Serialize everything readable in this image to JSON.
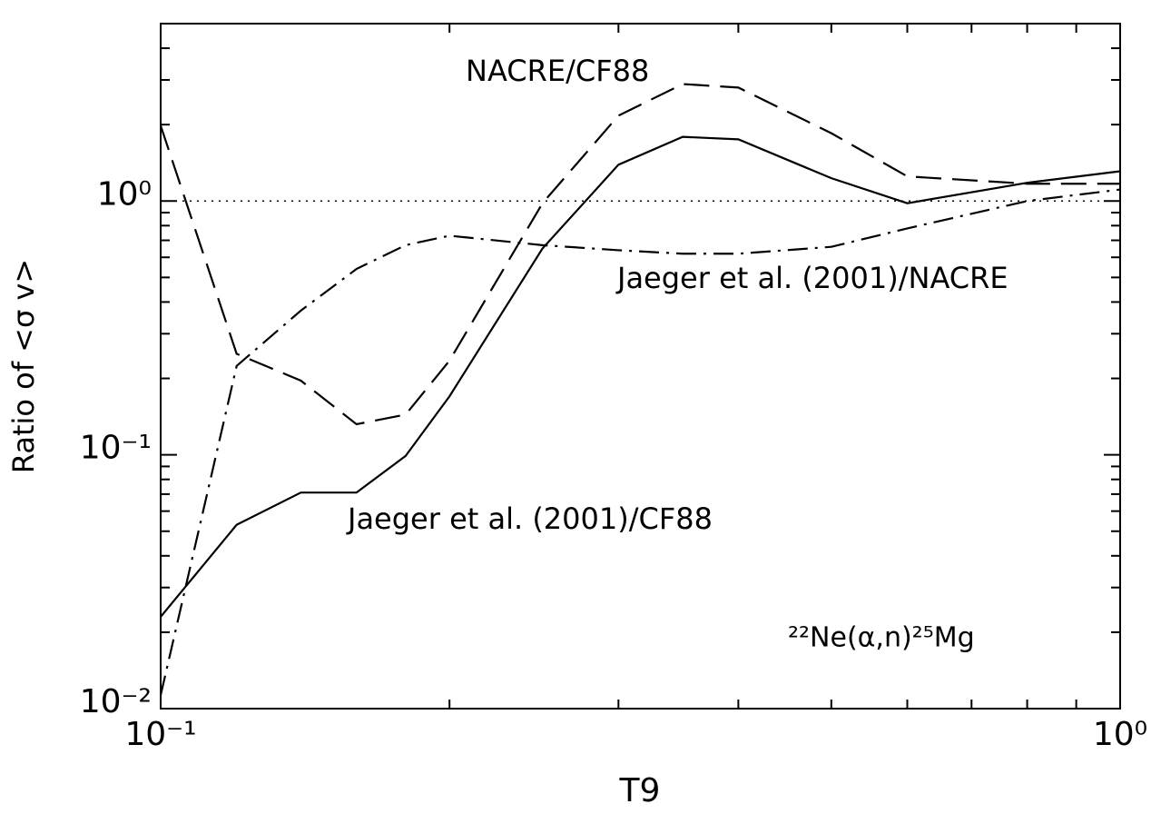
{
  "chart_data": {
    "type": "line",
    "x_label": "T9",
    "y_label": "Ratio of <σ v>",
    "x": [
      0.1,
      0.12,
      0.14,
      0.16,
      0.18,
      0.2,
      0.25,
      0.3,
      0.35,
      0.4,
      0.5,
      0.6,
      0.8,
      1.0
    ],
    "series": [
      {
        "name": "Jaeger et al. (2001)/CF88",
        "color": "#000000",
        "dash": "solid",
        "values": [
          0.023,
          0.053,
          0.071,
          0.071,
          0.099,
          0.17,
          0.65,
          1.39,
          1.79,
          1.75,
          1.23,
          0.98,
          1.18,
          1.31
        ]
      },
      {
        "name": "NACRE/CF88",
        "color": "#000000",
        "dash": "dashed",
        "values": [
          1.98,
          0.25,
          0.196,
          0.132,
          0.144,
          0.235,
          0.98,
          2.17,
          2.89,
          2.8,
          1.85,
          1.25,
          1.17,
          1.17
        ]
      },
      {
        "name": "Jaeger et al. (2001)/NACRE",
        "color": "#000000",
        "dash": "dashdot",
        "values": [
          0.0113,
          0.224,
          0.37,
          0.54,
          0.67,
          0.73,
          0.67,
          0.64,
          0.62,
          0.62,
          0.66,
          0.78,
          1.0,
          1.11
        ]
      }
    ],
    "reference_line": 1,
    "annotation": "²²Ne(α,n)²⁵Mg",
    "xscale": "log",
    "yscale": "log",
    "xlim": [
      0.1,
      1.0
    ],
    "ylim": [
      0.01,
      5
    ],
    "xticks": [
      {
        "value": 0.1,
        "label": "10⁻¹"
      },
      {
        "value": 1,
        "label": "10⁰"
      }
    ],
    "xminorticks": [
      0.2,
      0.3,
      0.4,
      0.5,
      0.6,
      0.7,
      0.8,
      0.9
    ],
    "yticks": [
      {
        "value": 0.01,
        "label": "10⁻²"
      },
      {
        "value": 0.1,
        "label": "10⁻¹"
      },
      {
        "value": 1,
        "label": "10⁰"
      }
    ],
    "yminorticks": [
      0.02,
      0.03,
      0.04,
      0.05,
      0.06,
      0.07,
      0.08,
      0.09,
      0.2,
      0.3,
      0.4,
      0.5,
      0.6,
      0.7,
      0.8,
      0.9,
      2,
      3,
      4
    ]
  }
}
